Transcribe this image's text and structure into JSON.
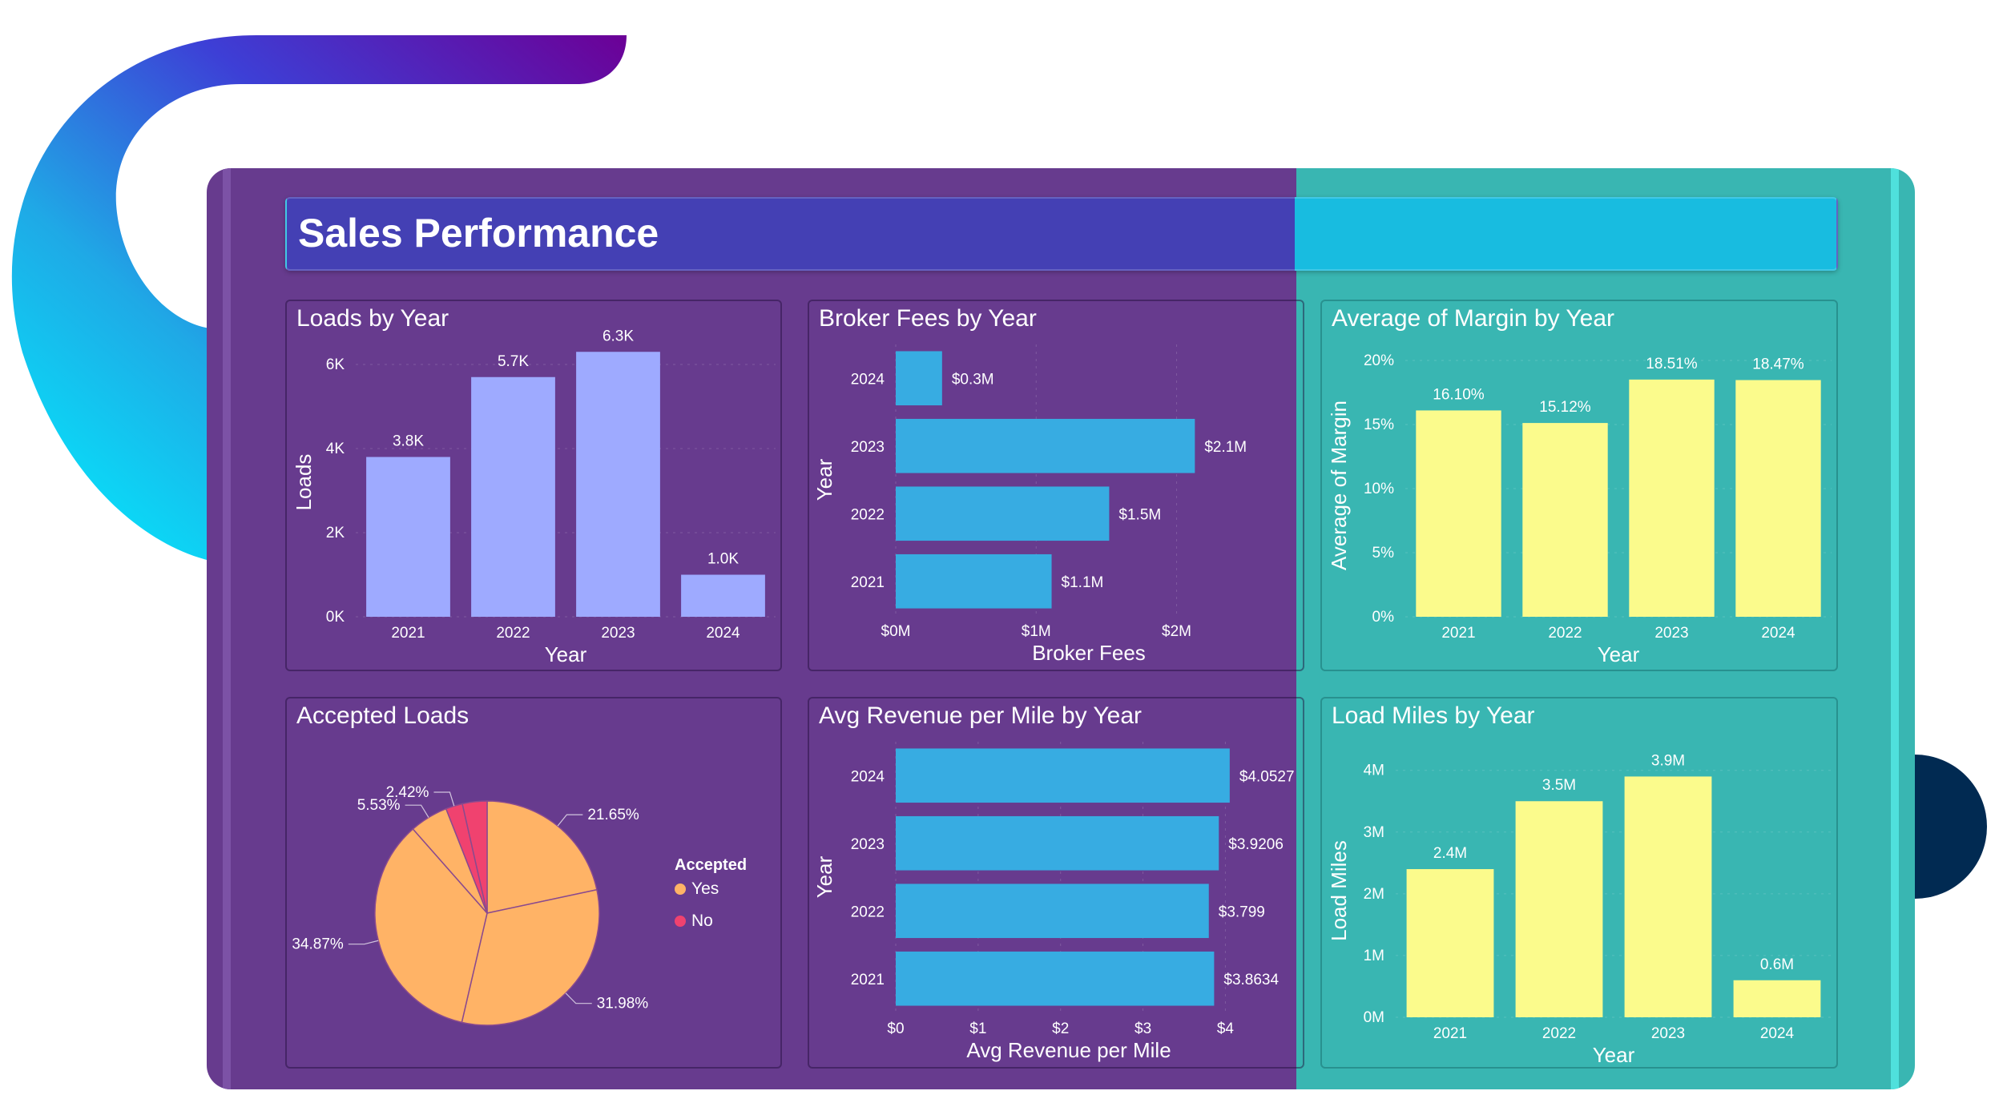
{
  "title": "Sales Performance",
  "colors": {
    "purple_bg": "#673b8e",
    "teal_bg": "#39b6b2",
    "lavender_bar": "#9eaaff",
    "blue_bar": "#37ace2",
    "yellow_bar": "#fbfb8c",
    "pie_yes": "#ffb366",
    "pie_no": "#f0426f"
  },
  "panels": {
    "loads": {
      "title": "Loads by Year"
    },
    "broker": {
      "title": "Broker Fees by Year"
    },
    "margin": {
      "title": "Average of Margin by Year"
    },
    "accepted": {
      "title": "Accepted Loads"
    },
    "rpm": {
      "title": "Avg Revenue per Mile by Year"
    },
    "miles": {
      "title": "Load Miles by Year"
    }
  },
  "chart_data": [
    {
      "id": "loads",
      "type": "bar",
      "title": "Loads by Year",
      "categories": [
        "2021",
        "2022",
        "2023",
        "2024"
      ],
      "values": [
        3.8,
        5.7,
        6.3,
        1.0
      ],
      "data_labels": [
        "3.8K",
        "5.7K",
        "6.3K",
        "1.0K"
      ],
      "xlabel": "Year",
      "ylabel": "Loads",
      "ylim": [
        0,
        6.4
      ],
      "yticks": [
        0,
        2,
        4,
        6
      ],
      "ytick_labels": [
        "0K",
        "2K",
        "4K",
        "6K"
      ]
    },
    {
      "id": "broker",
      "type": "bar",
      "orientation": "horizontal",
      "title": "Broker Fees by Year",
      "categories": [
        "2024",
        "2023",
        "2022",
        "2021"
      ],
      "values": [
        0.33,
        2.13,
        1.52,
        1.11
      ],
      "data_labels": [
        "$0.3M",
        "$2.1M",
        "$1.5M",
        "$1.1M"
      ],
      "xlabel": "Broker Fees",
      "ylabel": "Year",
      "xlim": [
        0,
        2.75
      ],
      "xticks": [
        0,
        1,
        2
      ],
      "xtick_labels": [
        "$0M",
        "$1M",
        "$2M"
      ]
    },
    {
      "id": "margin",
      "type": "bar",
      "title": "Average of Margin by Year",
      "categories": [
        "2021",
        "2022",
        "2023",
        "2024"
      ],
      "values": [
        16.1,
        15.12,
        18.51,
        18.47
      ],
      "data_labels": [
        "16.10%",
        "15.12%",
        "18.51%",
        "18.47%"
      ],
      "xlabel": "Year",
      "ylabel": "Average of Margin",
      "ylim": [
        0,
        20.5
      ],
      "yticks": [
        0,
        5,
        10,
        15,
        20
      ],
      "ytick_labels": [
        "0%",
        "5%",
        "10%",
        "15%",
        "20%"
      ]
    },
    {
      "id": "accepted",
      "type": "pie",
      "title": "Accepted Loads",
      "slices": [
        {
          "label": "21.65%",
          "value": 21.65,
          "group": "Yes"
        },
        {
          "label": "31.98%",
          "value": 31.98,
          "group": "Yes"
        },
        {
          "label": "34.87%",
          "value": 34.87,
          "group": "Yes"
        },
        {
          "label": "5.53%",
          "value": 5.53,
          "group": "Yes"
        },
        {
          "label": "2.42%",
          "value": 2.42,
          "group": "No"
        },
        {
          "label": "",
          "value": 3.55,
          "group": "No"
        }
      ],
      "legend_title": "Accepted",
      "legend": [
        "Yes",
        "No"
      ]
    },
    {
      "id": "rpm",
      "type": "bar",
      "orientation": "horizontal",
      "title": "Avg Revenue per Mile by Year",
      "categories": [
        "2024",
        "2023",
        "2022",
        "2021"
      ],
      "values": [
        4.0527,
        3.9206,
        3.799,
        3.8634
      ],
      "data_labels": [
        "$4.0527",
        "$3.9206",
        "$3.799",
        "$3.8634"
      ],
      "xlabel": "Avg Revenue per Mile",
      "ylabel": "Year",
      "xlim": [
        0,
        4.2
      ],
      "xticks": [
        0,
        1,
        2,
        3,
        4
      ],
      "xtick_labels": [
        "$0",
        "$1",
        "$2",
        "$3",
        "$4"
      ]
    },
    {
      "id": "miles",
      "type": "bar",
      "title": "Load Miles by Year",
      "categories": [
        "2021",
        "2022",
        "2023",
        "2024"
      ],
      "values": [
        2.4,
        3.5,
        3.9,
        0.6
      ],
      "data_labels": [
        "2.4M",
        "3.5M",
        "3.9M",
        "0.6M"
      ],
      "xlabel": "Year",
      "ylabel": "Load Miles",
      "ylim": [
        0,
        4.1
      ],
      "yticks": [
        0,
        1,
        2,
        3,
        4
      ],
      "ytick_labels": [
        "0M",
        "1M",
        "2M",
        "3M",
        "4M"
      ]
    }
  ]
}
